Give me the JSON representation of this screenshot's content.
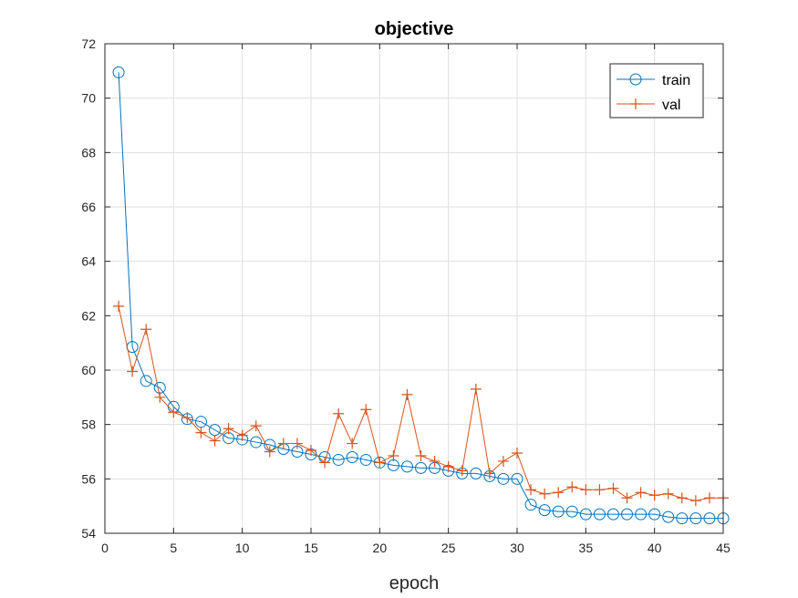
{
  "chart_data": {
    "type": "line",
    "title": "objective",
    "xlabel": "epoch",
    "ylabel": "",
    "xlim": [
      0,
      45
    ],
    "ylim": [
      54,
      72
    ],
    "xticks": [
      0,
      5,
      10,
      15,
      20,
      25,
      30,
      35,
      40,
      45
    ],
    "yticks": [
      54,
      56,
      58,
      60,
      62,
      64,
      66,
      68,
      70,
      72
    ],
    "grid": true,
    "legend_position": "top-right",
    "x": [
      1,
      2,
      3,
      4,
      5,
      6,
      7,
      8,
      9,
      10,
      11,
      12,
      13,
      14,
      15,
      16,
      17,
      18,
      19,
      20,
      21,
      22,
      23,
      24,
      25,
      26,
      27,
      28,
      29,
      30,
      31,
      32,
      33,
      34,
      35,
      36,
      37,
      38,
      39,
      40,
      41,
      42,
      43,
      44,
      45
    ],
    "series": [
      {
        "name": "train",
        "color": "#0072BD",
        "marker": "circle",
        "values": [
          70.95,
          60.85,
          59.6,
          59.35,
          58.65,
          58.2,
          58.1,
          57.8,
          57.5,
          57.45,
          57.35,
          57.25,
          57.1,
          57.0,
          56.9,
          56.8,
          56.7,
          56.8,
          56.7,
          56.6,
          56.5,
          56.45,
          56.4,
          56.4,
          56.3,
          56.2,
          56.2,
          56.1,
          56.0,
          56.0,
          55.05,
          54.85,
          54.8,
          54.8,
          54.7,
          54.7,
          54.7,
          54.7,
          54.7,
          54.7,
          54.6,
          54.55,
          54.55,
          54.55,
          54.55
        ]
      },
      {
        "name": "val",
        "color": "#D95319",
        "marker": "plus",
        "values": [
          62.35,
          59.95,
          61.5,
          59.0,
          58.45,
          58.25,
          57.7,
          57.4,
          57.85,
          57.6,
          57.95,
          57.0,
          57.3,
          57.3,
          57.05,
          56.6,
          58.4,
          57.3,
          58.55,
          56.6,
          56.85,
          59.1,
          56.85,
          56.65,
          56.45,
          56.3,
          59.3,
          56.2,
          56.65,
          56.95,
          55.6,
          55.45,
          55.5,
          55.7,
          55.6,
          55.6,
          55.65,
          55.3,
          55.5,
          55.4,
          55.45,
          55.3,
          55.2,
          55.3,
          55.3
        ]
      }
    ]
  }
}
